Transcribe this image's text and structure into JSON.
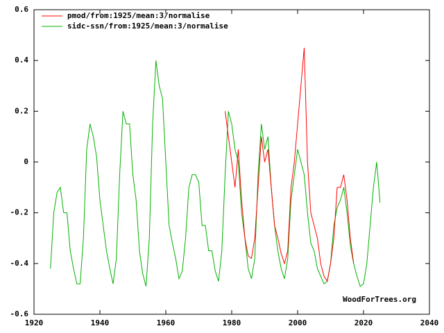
{
  "chart_data": {
    "type": "line",
    "series": [
      {
        "name": "pmod/from:1925/mean:3/normalise",
        "color": "#ff0000",
        "x": [
          1978,
          1979,
          1980,
          1981,
          1982,
          1983,
          1984,
          1985,
          1986,
          1987,
          1988,
          1989,
          1990,
          1991,
          1992,
          1993,
          1994,
          1995,
          1996,
          1997,
          1998,
          1999,
          2000,
          2001,
          2002,
          2003,
          2004,
          2005,
          2006,
          2007,
          2008,
          2009,
          2010,
          2011,
          2012,
          2013,
          2014,
          2015,
          2016,
          2017
        ],
        "values": [
          0.2,
          0.1,
          0.0,
          -0.1,
          0.05,
          -0.15,
          -0.3,
          -0.37,
          -0.38,
          -0.3,
          -0.1,
          0.1,
          0.0,
          0.05,
          -0.1,
          -0.25,
          -0.3,
          -0.36,
          -0.4,
          -0.35,
          -0.1,
          0.0,
          0.15,
          0.3,
          0.45,
          0.0,
          -0.2,
          -0.25,
          -0.3,
          -0.4,
          -0.45,
          -0.47,
          -0.4,
          -0.3,
          -0.1,
          -0.1,
          -0.05,
          -0.15,
          -0.3,
          -0.4
        ]
      },
      {
        "name": "sidc-ssn/from:1925/mean:3/normalise",
        "color": "#00b000",
        "x": [
          1925,
          1926,
          1927,
          1928,
          1929,
          1930,
          1931,
          1932,
          1933,
          1934,
          1935,
          1936,
          1937,
          1938,
          1939,
          1940,
          1941,
          1942,
          1943,
          1944,
          1945,
          1946,
          1947,
          1948,
          1949,
          1950,
          1951,
          1952,
          1953,
          1954,
          1955,
          1956,
          1957,
          1958,
          1959,
          1960,
          1961,
          1962,
          1963,
          1964,
          1965,
          1966,
          1967,
          1968,
          1969,
          1970,
          1971,
          1972,
          1973,
          1974,
          1975,
          1976,
          1977,
          1978,
          1979,
          1980,
          1981,
          1982,
          1983,
          1984,
          1985,
          1986,
          1987,
          1988,
          1989,
          1990,
          1991,
          1992,
          1993,
          1994,
          1995,
          1996,
          1997,
          1998,
          1999,
          2000,
          2001,
          2002,
          2003,
          2004,
          2005,
          2006,
          2007,
          2008,
          2009,
          2010,
          2011,
          2012,
          2013,
          2014,
          2015,
          2016,
          2017,
          2018,
          2019,
          2020,
          2021,
          2022,
          2023,
          2024,
          2025
        ],
        "values": [
          -0.42,
          -0.2,
          -0.12,
          -0.1,
          -0.2,
          -0.2,
          -0.35,
          -0.42,
          -0.48,
          -0.48,
          -0.3,
          0.05,
          0.15,
          0.1,
          0.02,
          -0.15,
          -0.25,
          -0.35,
          -0.42,
          -0.48,
          -0.38,
          -0.05,
          0.2,
          0.15,
          0.15,
          -0.05,
          -0.15,
          -0.35,
          -0.44,
          -0.49,
          -0.3,
          0.15,
          0.4,
          0.3,
          0.25,
          0.0,
          -0.25,
          -0.32,
          -0.38,
          -0.46,
          -0.43,
          -0.3,
          -0.1,
          -0.05,
          -0.05,
          -0.08,
          -0.25,
          -0.25,
          -0.35,
          -0.35,
          -0.43,
          -0.47,
          -0.35,
          -0.05,
          0.2,
          0.15,
          0.05,
          0.0,
          -0.2,
          -0.3,
          -0.42,
          -0.46,
          -0.38,
          -0.05,
          0.15,
          0.05,
          0.1,
          -0.1,
          -0.25,
          -0.35,
          -0.42,
          -0.46,
          -0.38,
          -0.15,
          -0.05,
          0.05,
          0.0,
          -0.05,
          -0.2,
          -0.32,
          -0.35,
          -0.42,
          -0.45,
          -0.48,
          -0.47,
          -0.4,
          -0.25,
          -0.18,
          -0.15,
          -0.1,
          -0.2,
          -0.33,
          -0.4,
          -0.45,
          -0.49,
          -0.48,
          -0.4,
          -0.25,
          -0.1,
          0.0,
          -0.16
        ]
      }
    ],
    "xlim": [
      1920,
      2040
    ],
    "xticks": [
      1920,
      1940,
      1960,
      1980,
      2000,
      2020,
      2040
    ],
    "ylim": [
      -0.6,
      0.6
    ],
    "yticks": [
      -0.6,
      -0.4,
      -0.2,
      0,
      0.2,
      0.4,
      0.6
    ],
    "legend": "upper left",
    "annotation": "WoodForTrees.org"
  }
}
